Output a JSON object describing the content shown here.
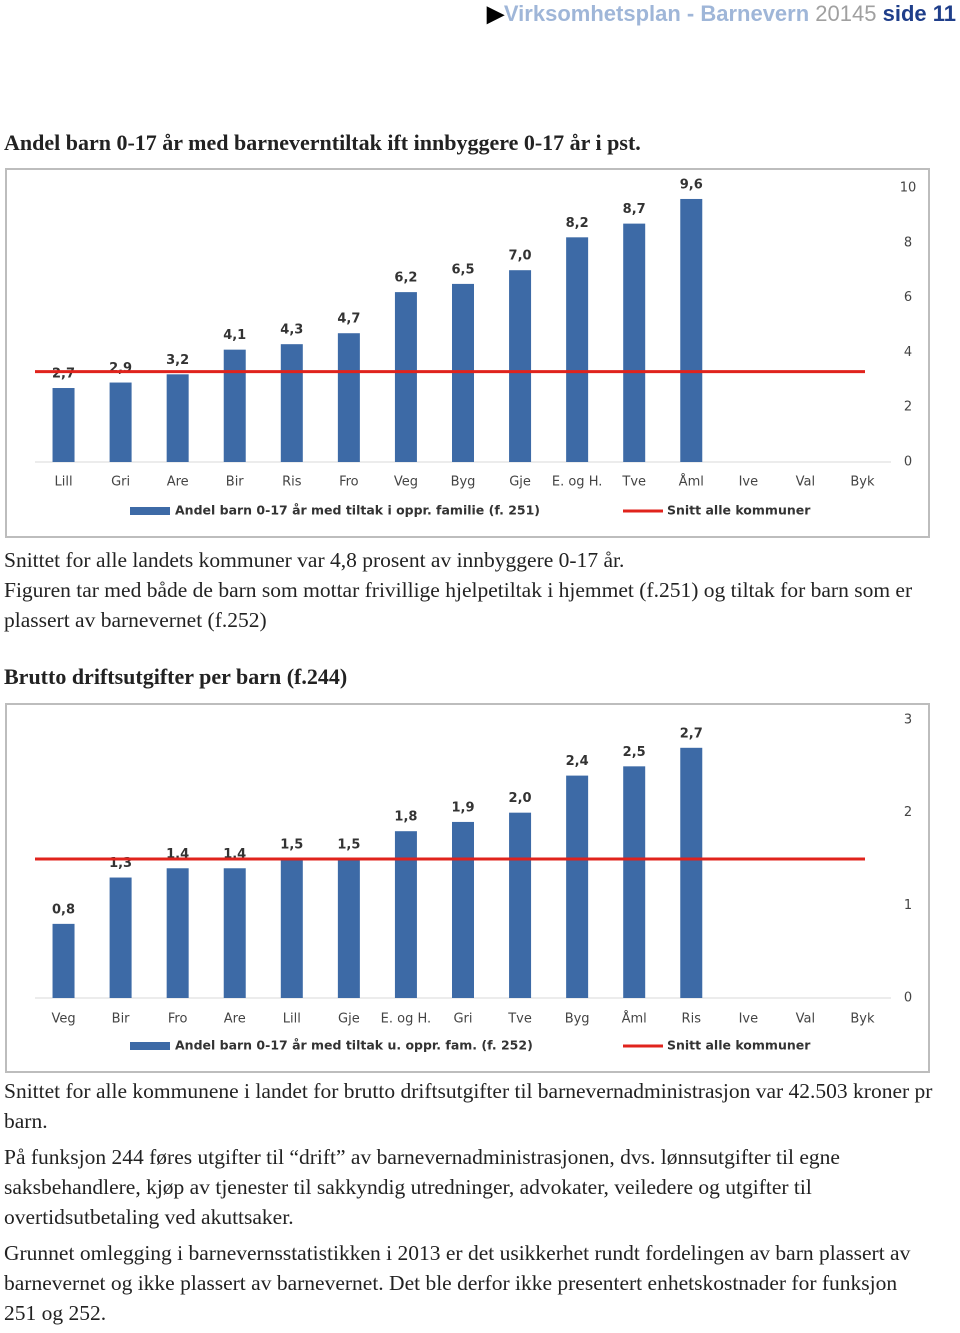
{
  "header": {
    "title": "Virksomhetsplan - Barnevern",
    "year": "20145",
    "page": "side 11"
  },
  "heading1": "Andel barn 0-17 år med barneverntiltak ift innbyggere 0-17 år i pst.",
  "paragraph1": "Snittet for alle landets kommuner var 4,8 prosent av innbyggere 0-17 år.",
  "paragraph2": "Figuren tar med både de barn som mottar frivillige hjelpetiltak i hjemmet (f.251) og tiltak for barn som er plassert av barnevernet (f.252)",
  "heading2": "Brutto driftsutgifter per barn (f.244)",
  "paragraph3": "Snittet for alle kommunene i landet for brutto driftsutgifter til barnevernadministrasjon var 42.503 kroner pr barn.",
  "paragraph4": "På funksjon 244 føres utgifter til “drift” av barnevernadministrasjonen, dvs. lønnsutgifter til egne saksbehandlere, kjøp av tjenester til sakkyndig utredninger, advokater, veiledere og utgifter til overtidsutbetaling ved akuttsaker.",
  "paragraph5": "Grunnet omlegging i barnevernsstatistikken i 2013 er det usikkerhet rundt fordelingen av barn plassert av barnevernet og ikke plassert av barnevernet. Det ble derfor ikke presentert enhetskostnader for funksjon 251 og 252.",
  "chart_data": [
    {
      "type": "bar",
      "categories": [
        "Lill",
        "Gri",
        "Are",
        "Bir",
        "Ris",
        "Fro",
        "Veg",
        "Byg",
        "Gje",
        "E. og H.",
        "Tve",
        "Åml",
        "Ive",
        "Val",
        "Byk"
      ],
      "series": [
        {
          "name": "Andel barn 0-17 år med tiltak i oppr. familie (f. 251)",
          "color": "#3d6aa6",
          "values": [
            2.7,
            2.9,
            3.2,
            4.1,
            4.3,
            4.7,
            6.2,
            6.5,
            7.0,
            8.2,
            8.7,
            9.6,
            null,
            null,
            null
          ],
          "value_labels": [
            "2,7",
            "2,9",
            "3,2",
            "4,1",
            "4,3",
            "4,7",
            "6,2",
            "6,5",
            "7,0",
            "8,2",
            "8,7",
            "9,6",
            null,
            null,
            null
          ]
        }
      ],
      "reference": {
        "name": "Snitt alle kommuner",
        "color": "#e0231c",
        "value": 3.3
      },
      "ylim": [
        0,
        10
      ],
      "yticks": [
        0,
        2,
        4,
        6,
        8,
        10
      ],
      "y_axis_side": "right"
    },
    {
      "type": "bar",
      "categories": [
        "Veg",
        "Bir",
        "Fro",
        "Are",
        "Lill",
        "Gje",
        "E. og H.",
        "Gri",
        "Tve",
        "Byg",
        "Åml",
        "Ris",
        "Ive",
        "Val",
        "Byk"
      ],
      "series": [
        {
          "name": "Andel barn 0-17 år med tiltak u. oppr. fam. (f. 252)",
          "color": "#3d6aa6",
          "values": [
            0.8,
            1.3,
            1.4,
            1.4,
            1.5,
            1.5,
            1.8,
            1.9,
            2.0,
            2.4,
            2.5,
            2.7,
            null,
            null,
            null
          ],
          "value_labels": [
            "0,8",
            "1,3",
            "1,4",
            "1,4",
            "1,5",
            "1,5",
            "1,8",
            "1,9",
            "2,0",
            "2,4",
            "2,5",
            "2,7",
            null,
            null,
            null
          ]
        }
      ],
      "reference": {
        "name": "Snitt alle kommuner",
        "color": "#e0231c",
        "value": 1.5
      },
      "ylim": [
        0,
        3
      ],
      "yticks": [
        0,
        1,
        2,
        3
      ],
      "y_axis_side": "right"
    }
  ]
}
